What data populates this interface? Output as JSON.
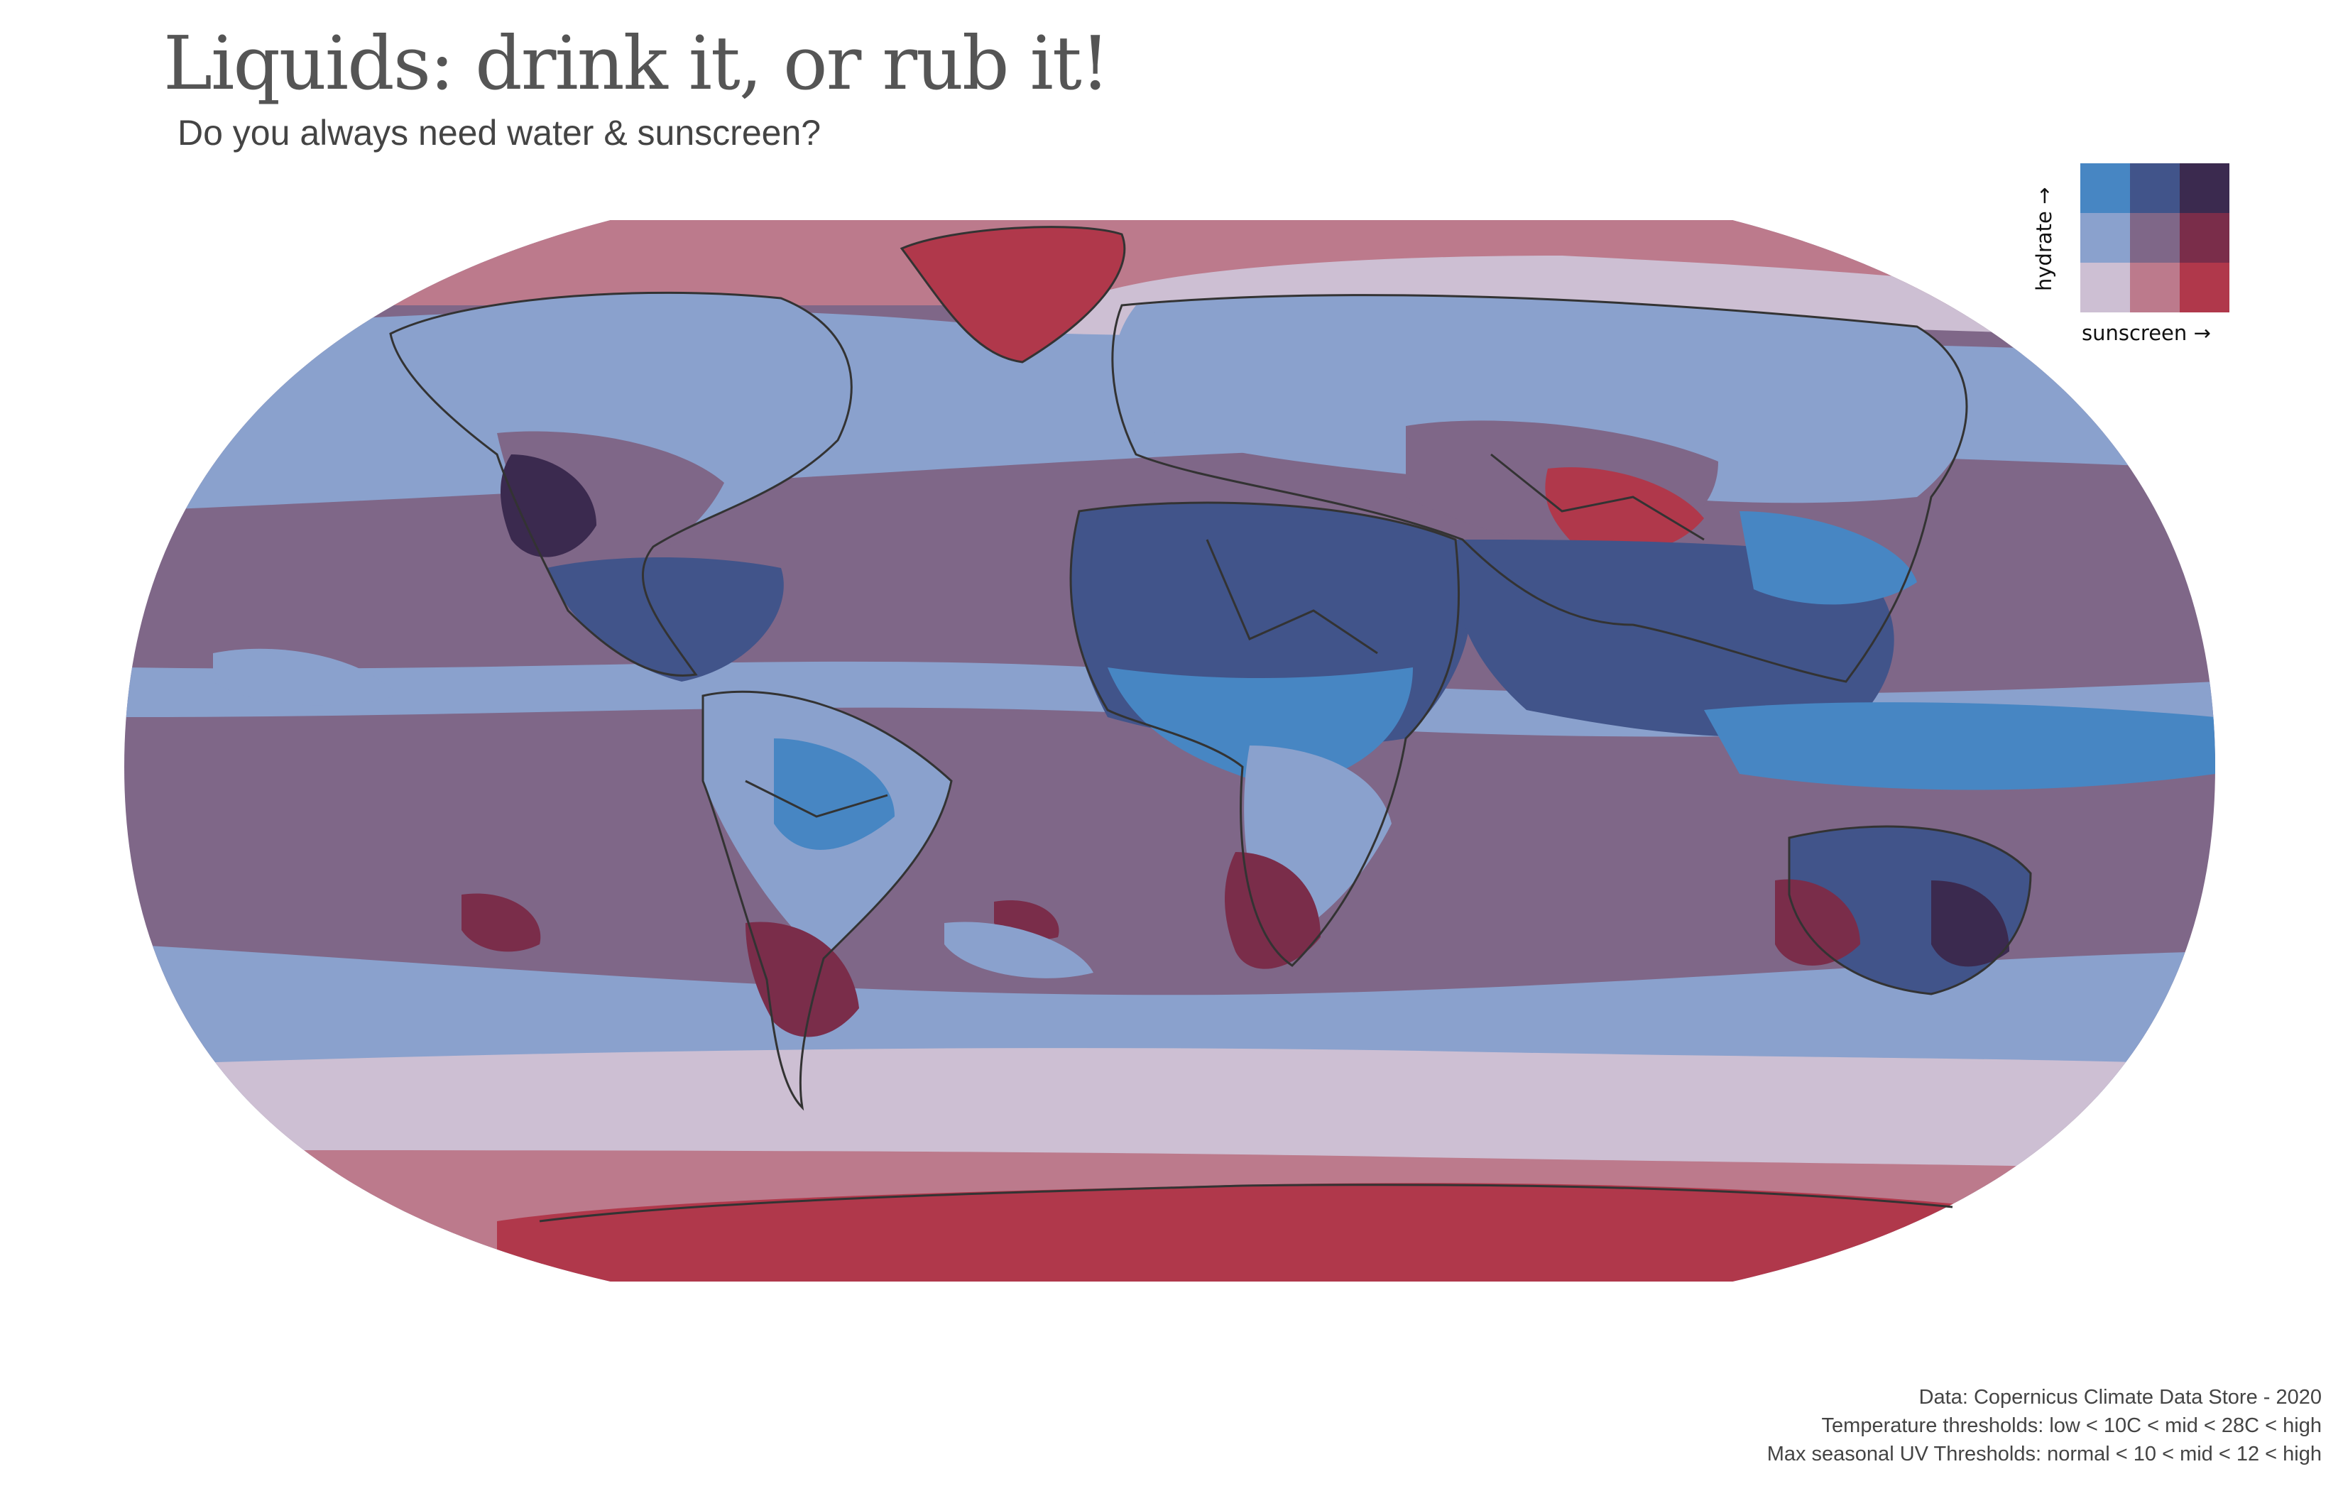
{
  "title": "Liquids: drink it, or rub it!",
  "subtitle": "Do you always need water & sunscreen?",
  "legend": {
    "y_label": "hydrate →",
    "x_label": "sunscreen →",
    "grid_colors": [
      [
        "#4786c3",
        "#41548a",
        "#3b2a4f"
      ],
      [
        "#8aa1cd",
        "#7f6788",
        "#7a2d4a"
      ],
      [
        "#cdbfd3",
        "#bc7a8c",
        "#b0384b"
      ]
    ]
  },
  "map_colors": {
    "low_normal": "#cdbfd3",
    "low_mid": "#bc7a8c",
    "low_high": "#b0384b",
    "mid_normal": "#8aa1cd",
    "mid_mid": "#7f6788",
    "mid_high": "#7a2d4a",
    "high_normal": "#4786c3",
    "high_mid": "#41548a",
    "high_high": "#3b2a4f",
    "border": "#333333"
  },
  "caption": {
    "line1": "Data: Copernicus Climate Data Store - 2020",
    "line2": "Temperature thresholds: low < 10C < mid < 28C < high",
    "line3": "Max seasonal UV Thresholds: normal < 10 < mid < 12 < high"
  }
}
